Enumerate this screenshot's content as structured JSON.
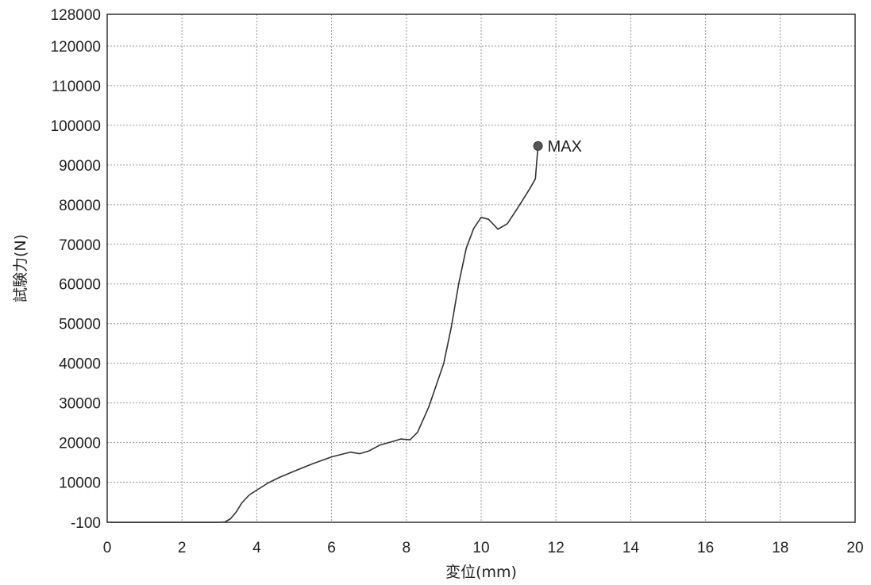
{
  "chart_data": {
    "type": "line",
    "title": "",
    "xlabel": "変位(mm)",
    "ylabel": "試験力(N)",
    "xlim": [
      0,
      20
    ],
    "ylim": [
      -100,
      128000
    ],
    "x_ticks": [
      0,
      2,
      4,
      6,
      8,
      10,
      12,
      14,
      16,
      18,
      20
    ],
    "x_tick_labels": [
      "0",
      "2",
      "4",
      "6",
      "8",
      "10",
      "12",
      "14",
      "16",
      "18",
      "20"
    ],
    "y_ticks": [
      -100,
      10000,
      20000,
      30000,
      40000,
      50000,
      60000,
      70000,
      80000,
      90000,
      100000,
      110000,
      120000,
      128000
    ],
    "y_tick_labels": [
      "-100",
      "10000",
      "20000",
      "30000",
      "40000",
      "50000",
      "60000",
      "70000",
      "80000",
      "90000",
      "100000",
      "110000",
      "120000",
      "128000"
    ],
    "grid": true,
    "legend": "none",
    "series": [
      {
        "points": [
          [
            0,
            -100
          ],
          [
            1,
            -100
          ],
          [
            2,
            -100
          ],
          [
            3,
            -100
          ],
          [
            3.15,
            0
          ],
          [
            3.3,
            800
          ],
          [
            3.45,
            2500
          ],
          [
            3.6,
            4800
          ],
          [
            3.8,
            6800
          ],
          [
            4.0,
            8000
          ],
          [
            4.3,
            9800
          ],
          [
            4.6,
            11200
          ],
          [
            5.0,
            12800
          ],
          [
            5.5,
            14700
          ],
          [
            6.0,
            16400
          ],
          [
            6.5,
            17600
          ],
          [
            6.75,
            17200
          ],
          [
            7.0,
            17900
          ],
          [
            7.3,
            19400
          ],
          [
            7.6,
            20200
          ],
          [
            7.85,
            20900
          ],
          [
            8.1,
            20700
          ],
          [
            8.3,
            22600
          ],
          [
            8.6,
            29000
          ],
          [
            9.0,
            40000
          ],
          [
            9.2,
            49000
          ],
          [
            9.4,
            60000
          ],
          [
            9.6,
            69000
          ],
          [
            9.8,
            74000
          ],
          [
            10.0,
            76800
          ],
          [
            10.2,
            76300
          ],
          [
            10.45,
            73800
          ],
          [
            10.7,
            75200
          ],
          [
            11.0,
            79500
          ],
          [
            11.3,
            84000
          ],
          [
            11.45,
            86500
          ],
          [
            11.52,
            94800
          ]
        ]
      }
    ],
    "annotations": [
      {
        "text": "MAX",
        "x": 11.52,
        "y": 94800
      }
    ],
    "colors": {
      "line": "#333333",
      "grid": "#9a9a9a",
      "marker": "#555555"
    }
  }
}
